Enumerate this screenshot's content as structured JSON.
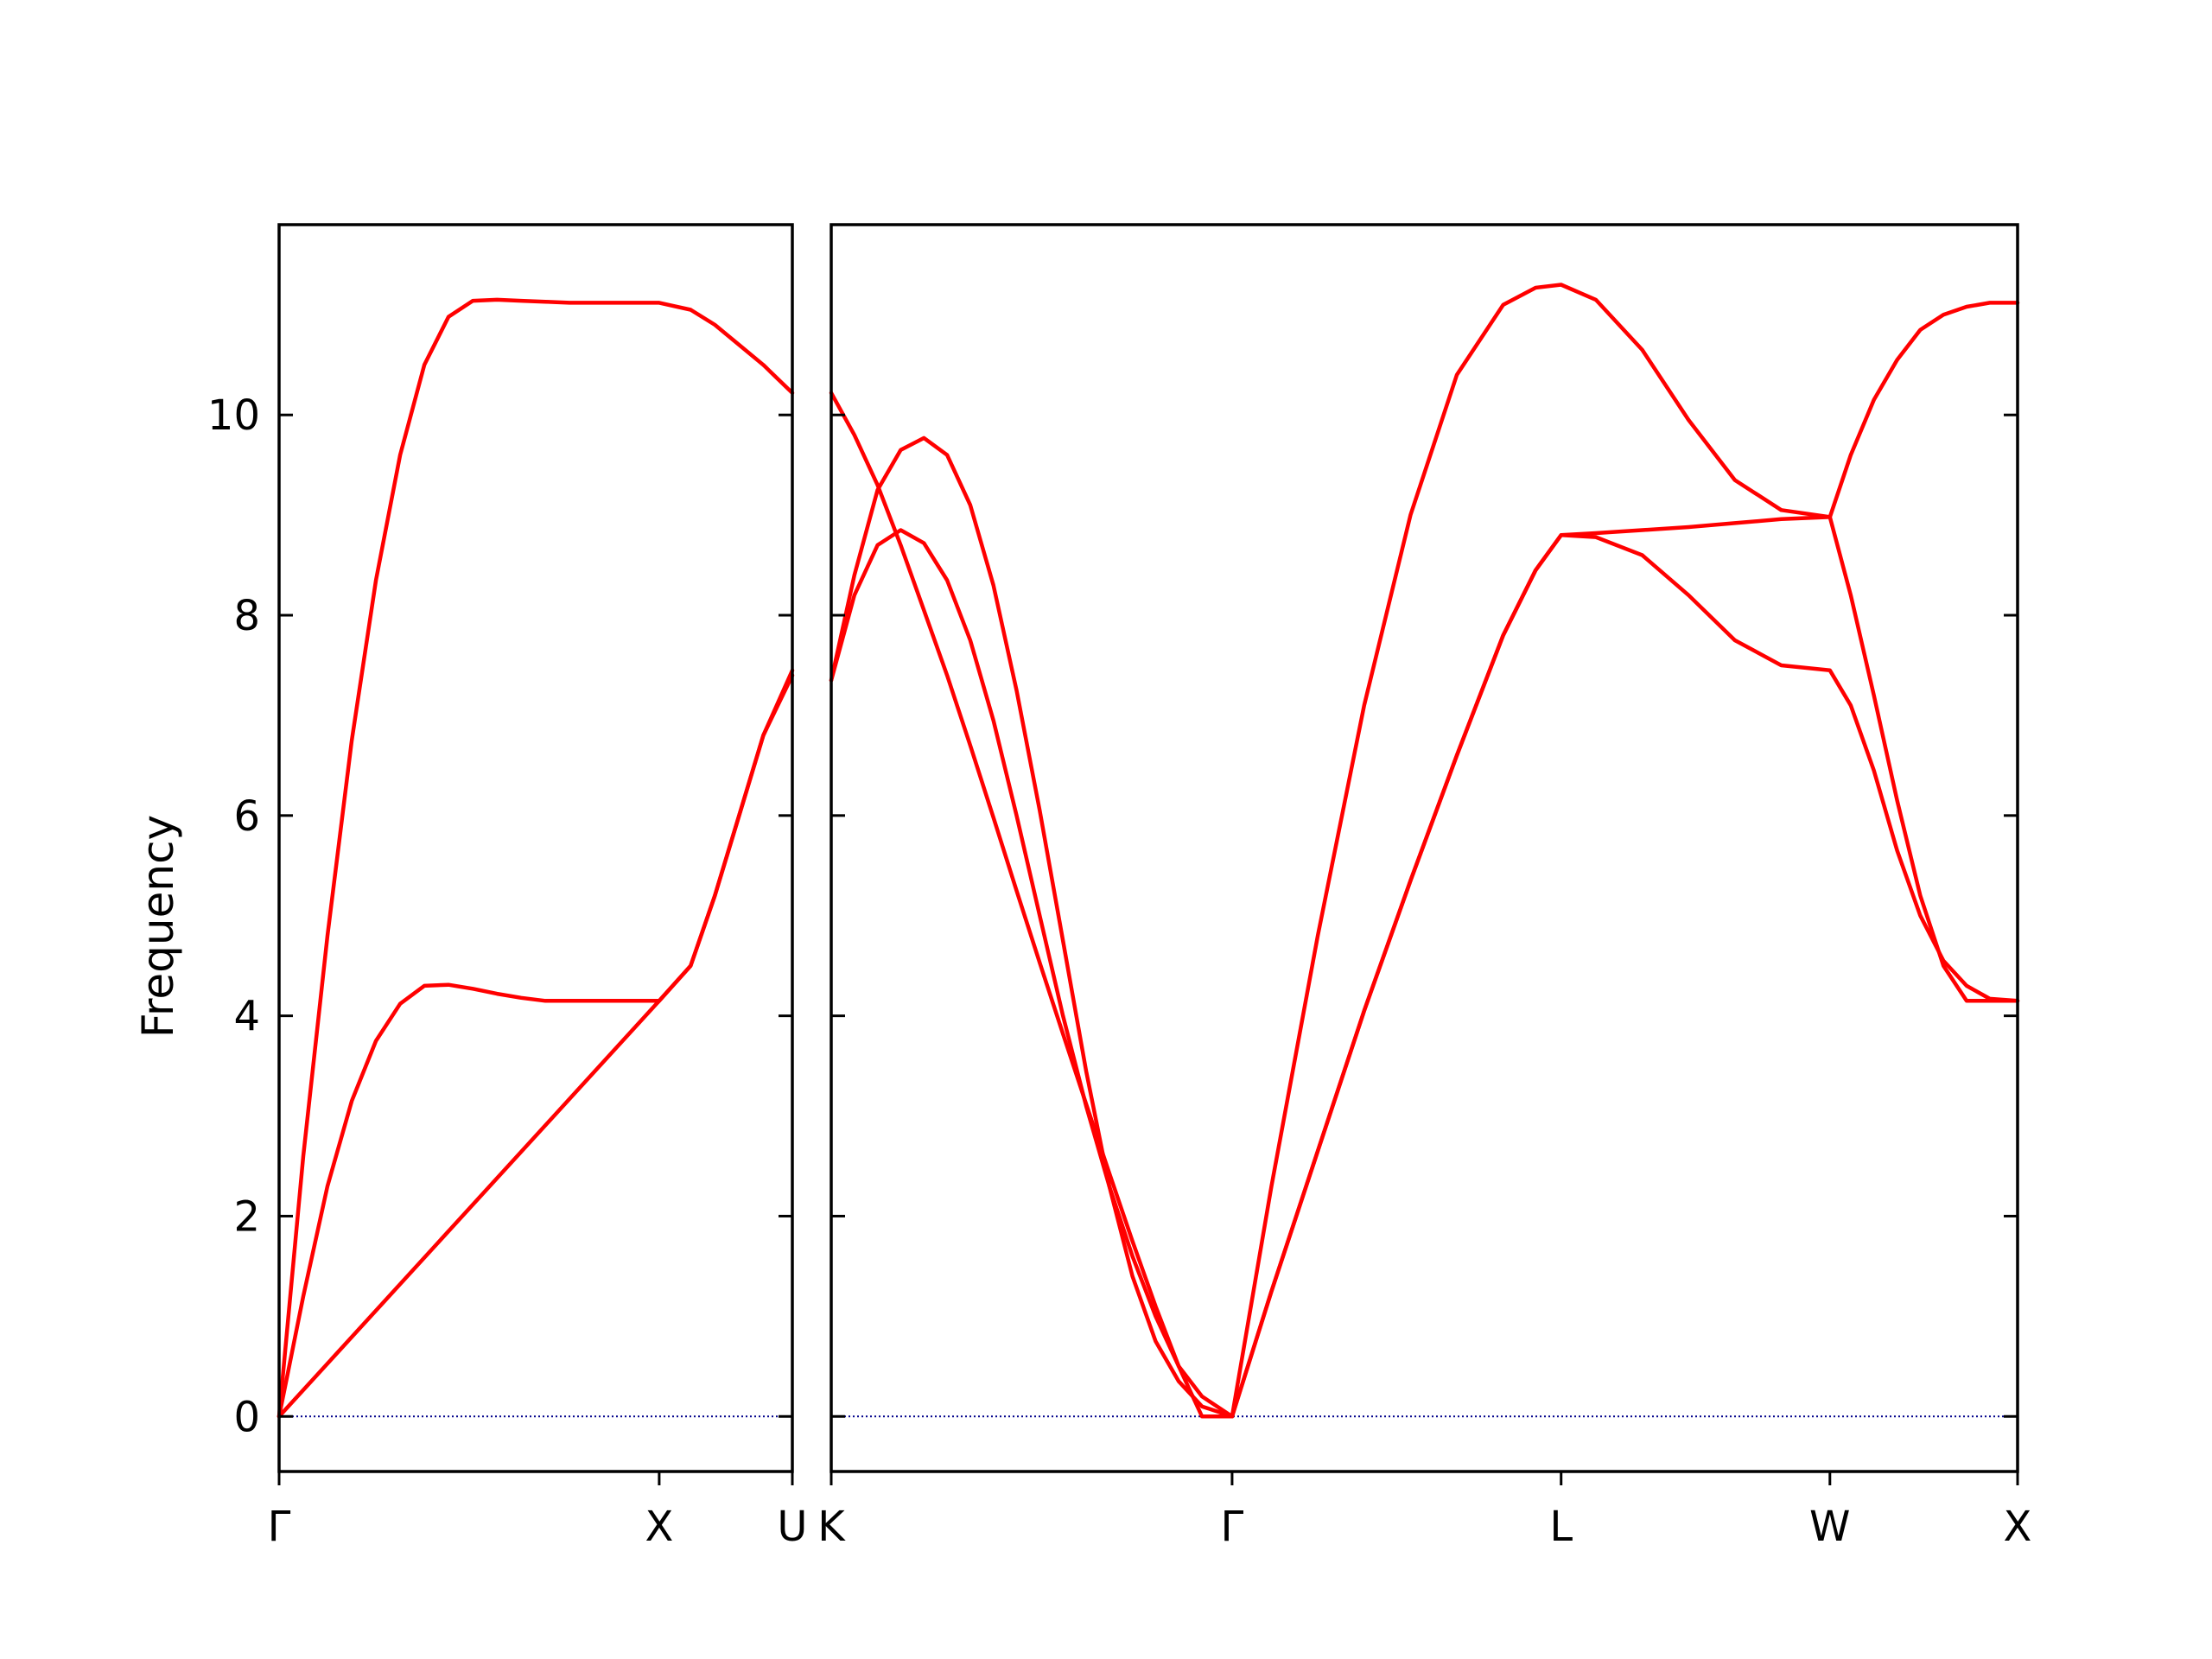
{
  "chart_data": {
    "type": "line",
    "ylabel": "Frequency",
    "ylim": [
      -0.55,
      11.9
    ],
    "yticks": [
      0,
      2,
      4,
      6,
      8,
      10
    ],
    "ytick_labels": [
      "0",
      "2",
      "4",
      "6",
      "8",
      "10"
    ],
    "line_color": "#ff0000",
    "zero_line_color": "#00008b",
    "grid": false,
    "panels": [
      {
        "id": "left",
        "xlim": [
          0,
          1.06
        ],
        "xticks": [
          {
            "x": 0.0,
            "label": "Γ"
          },
          {
            "x": 0.785,
            "label": "X"
          },
          {
            "x": 1.06,
            "label": "U"
          }
        ],
        "series": [
          {
            "x": [
              0,
              0.05,
              0.1,
              0.15,
              0.2,
              0.25,
              0.3,
              0.35,
              0.4,
              0.45,
              0.5,
              0.55,
              0.6,
              0.65,
              0.7,
              0.785,
              0.85,
              0.9,
              0.95,
              1.0,
              1.06
            ],
            "y": [
              0,
              1.2,
              2.3,
              3.15,
              3.75,
              4.12,
              4.3,
              4.31,
              4.27,
              4.22,
              4.18,
              4.15,
              4.15,
              4.15,
              4.15,
              4.15,
              4.5,
              5.2,
              6.0,
              6.8,
              7.4
            ]
          },
          {
            "x": [
              0,
              0.785,
              0.85,
              0.9,
              0.95,
              1.0,
              1.06
            ],
            "y": [
              0,
              4.15,
              4.5,
              5.2,
              6.0,
              6.8,
              7.45
            ]
          },
          {
            "x": [
              0,
              0.05,
              0.1,
              0.15,
              0.2,
              0.25,
              0.3,
              0.35,
              0.4,
              0.45,
              0.5,
              0.55,
              0.6,
              0.65,
              0.7,
              0.785,
              0.85,
              0.9,
              0.95,
              1.0,
              1.06
            ],
            "y": [
              0,
              2.6,
              4.8,
              6.75,
              8.35,
              9.6,
              10.5,
              10.98,
              11.14,
              11.15,
              11.14,
              11.13,
              11.12,
              11.12,
              11.12,
              11.12,
              11.05,
              10.9,
              10.7,
              10.5,
              10.22
            ]
          }
        ]
      },
      {
        "id": "right",
        "xlim": [
          0,
          2.56
        ],
        "xticks": [
          {
            "x": 0.0,
            "label": "K"
          },
          {
            "x": 0.865,
            "label": "Γ"
          },
          {
            "x": 1.575,
            "label": "L"
          },
          {
            "x": 2.155,
            "label": "W"
          },
          {
            "x": 2.56,
            "label": "X"
          }
        ],
        "series": [
          {
            "x": [
              0,
              0.05,
              0.1,
              0.15,
              0.2,
              0.25,
              0.3,
              0.35,
              0.4,
              0.45,
              0.5,
              0.55,
              0.6,
              0.65,
              0.7,
              0.75,
              0.8,
              0.865
            ],
            "y": [
              10.22,
              9.8,
              9.3,
              8.7,
              8.05,
              7.4,
              6.7,
              5.98,
              5.25,
              4.53,
              3.82,
              3.12,
              2.43,
              1.75,
              1.1,
              0.5,
              0.0,
              0.0
            ]
          },
          {
            "x": [
              0,
              0.05,
              0.1,
              0.15,
              0.2,
              0.25,
              0.3,
              0.35,
              0.4,
              0.45,
              0.5,
              0.55,
              0.6,
              0.65,
              0.7,
              0.75,
              0.8,
              0.865
            ],
            "y": [
              7.35,
              8.2,
              8.7,
              8.85,
              8.72,
              8.35,
              7.75,
              6.95,
              6.0,
              5.0,
              4.0,
              3.1,
              2.3,
              1.6,
              1.0,
              0.5,
              0.2,
              0.0
            ]
          },
          {
            "x": [
              0,
              0.05,
              0.1,
              0.15,
              0.2,
              0.25,
              0.3,
              0.35,
              0.4,
              0.45,
              0.5,
              0.55,
              0.6,
              0.65,
              0.7,
              0.75,
              0.8,
              0.865
            ],
            "y": [
              7.35,
              8.4,
              9.25,
              9.65,
              9.77,
              9.6,
              9.1,
              8.3,
              7.25,
              6.05,
              4.75,
              3.45,
              2.3,
              1.4,
              0.75,
              0.35,
              0.1,
              0.0
            ]
          },
          {
            "x": [
              0.865,
              0.95,
              1.05,
              1.15,
              1.25,
              1.35,
              1.45,
              1.52,
              1.575,
              1.65,
              1.75,
              1.85,
              1.95,
              2.05,
              2.155,
              2.2,
              2.25,
              2.3,
              2.35,
              2.4,
              2.45,
              2.5,
              2.56
            ],
            "y": [
              0,
              1.25,
              2.65,
              4.05,
              5.35,
              6.6,
              7.8,
              8.45,
              8.8,
              8.82,
              8.85,
              8.88,
              8.92,
              8.96,
              8.98,
              8.2,
              7.2,
              6.15,
              5.2,
              4.5,
              4.15,
              4.15,
              4.15
            ]
          },
          {
            "x": [
              0.865,
              0.95,
              1.05,
              1.15,
              1.25,
              1.35,
              1.45,
              1.52,
              1.575,
              1.65,
              1.75,
              1.85,
              1.95,
              2.05,
              2.155,
              2.2,
              2.25,
              2.3,
              2.35,
              2.4,
              2.45,
              2.5,
              2.56
            ],
            "y": [
              0,
              1.25,
              2.65,
              4.05,
              5.35,
              6.6,
              7.8,
              8.45,
              8.8,
              8.78,
              8.6,
              8.2,
              7.75,
              7.5,
              7.45,
              7.1,
              6.45,
              5.65,
              5.0,
              4.55,
              4.3,
              4.17,
              4.15
            ]
          },
          {
            "x": [
              0.865,
              0.95,
              1.05,
              1.15,
              1.25,
              1.35,
              1.45,
              1.52,
              1.575,
              1.65,
              1.75,
              1.85,
              1.95,
              2.05,
              2.155,
              2.2,
              2.25,
              2.3,
              2.35,
              2.4,
              2.45,
              2.5,
              2.56
            ],
            "y": [
              0,
              2.3,
              4.8,
              7.1,
              9.0,
              10.4,
              11.1,
              11.27,
              11.3,
              11.15,
              10.65,
              9.95,
              9.35,
              9.05,
              8.98,
              9.6,
              10.15,
              10.55,
              10.85,
              11.0,
              11.08,
              11.12,
              11.12
            ]
          }
        ]
      }
    ]
  }
}
